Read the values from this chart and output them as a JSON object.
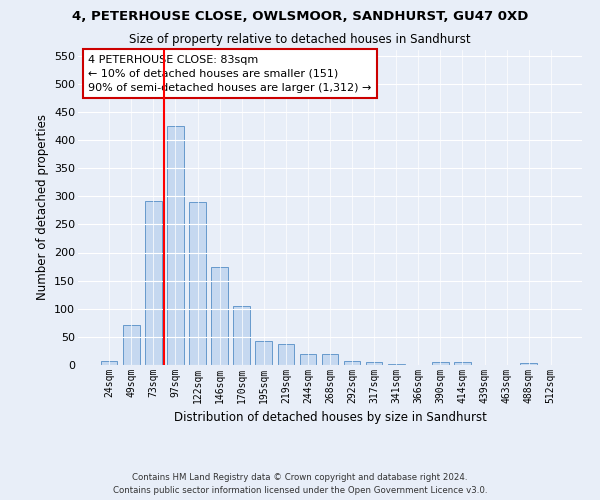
{
  "title1": "4, PETERHOUSE CLOSE, OWLSMOOR, SANDHURST, GU47 0XD",
  "title2": "Size of property relative to detached houses in Sandhurst",
  "xlabel": "Distribution of detached houses by size in Sandhurst",
  "ylabel": "Number of detached properties",
  "categories": [
    "24sqm",
    "49sqm",
    "73sqm",
    "97sqm",
    "122sqm",
    "146sqm",
    "170sqm",
    "195sqm",
    "219sqm",
    "244sqm",
    "268sqm",
    "292sqm",
    "317sqm",
    "341sqm",
    "366sqm",
    "390sqm",
    "414sqm",
    "439sqm",
    "463sqm",
    "488sqm",
    "512sqm"
  ],
  "values": [
    8,
    72,
    292,
    425,
    290,
    175,
    105,
    43,
    38,
    19,
    19,
    8,
    5,
    2,
    0,
    5,
    5,
    0,
    0,
    4,
    0
  ],
  "bar_color": "#c5d8f0",
  "bar_edge_color": "#6699cc",
  "red_line_index": 2.5,
  "annotation_text": "4 PETERHOUSE CLOSE: 83sqm\n← 10% of detached houses are smaller (151)\n90% of semi-detached houses are larger (1,312) →",
  "annotation_box_color": "#ffffff",
  "annotation_box_edge": "#cc0000",
  "ylim": [
    0,
    560
  ],
  "yticks": [
    0,
    50,
    100,
    150,
    200,
    250,
    300,
    350,
    400,
    450,
    500,
    550
  ],
  "footnote1": "Contains HM Land Registry data © Crown copyright and database right 2024.",
  "footnote2": "Contains public sector information licensed under the Open Government Licence v3.0.",
  "bg_color": "#e8eef8",
  "plot_bg_color": "#e8eef8"
}
